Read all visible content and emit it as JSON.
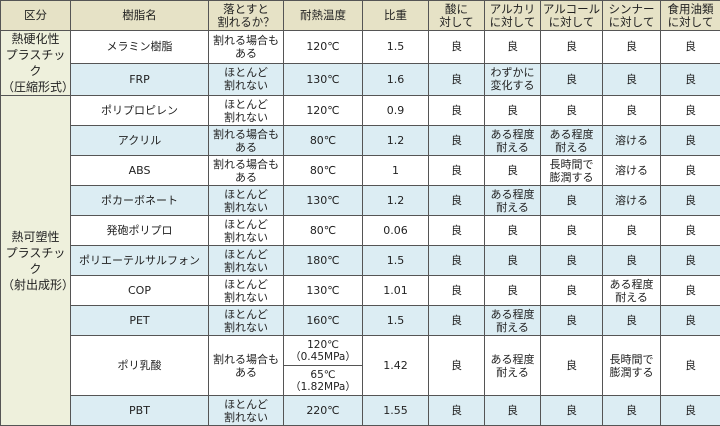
{
  "headers": [
    "区分",
    "樹脂名",
    "落とすと\n割れるか？",
    "耐熱温度",
    "比重",
    "酸に\n対して",
    "アルカリ\nに対して",
    "アルコール\nに対して",
    "シンナー\nに対して",
    "食用油類\nに対して"
  ],
  "categories": [
    {
      "label": "熱硬化性\nプラスチック\n（圧縮形式）",
      "rows": 2
    },
    {
      "label": "熱可塑性\nプラスチック\n（射出成形）",
      "rows": 10
    }
  ],
  "rows": [
    {
      "name": "メラミン樹脂",
      "drop": "割れる場合も\nある",
      "heat": "120℃",
      "sg": "1.5",
      "acid": "良",
      "alkali": "良",
      "alcohol": "良",
      "thinner": "良",
      "oil": "良"
    },
    {
      "name": "FRP",
      "drop": "ほとんど\n割れない",
      "heat": "130℃",
      "sg": "1.6",
      "acid": "良",
      "alkali": "わずかに\n変化する",
      "alcohol": "良",
      "thinner": "良",
      "oil": "良"
    },
    {
      "name": "ポリプロピレン",
      "drop": "ほとんど\n割れない",
      "heat": "120℃",
      "sg": "0.9",
      "acid": "良",
      "alkali": "良",
      "alcohol": "良",
      "thinner": "良",
      "oil": "良"
    },
    {
      "name": "アクリル",
      "drop": "割れる場合も\nある",
      "heat": "80℃",
      "sg": "1.2",
      "acid": "良",
      "alkali": "ある程度\n耐える",
      "alcohol": "ある程度\n耐える",
      "thinner": "溶ける",
      "oil": "良"
    },
    {
      "name": "ABS",
      "drop": "割れる場合も\nある",
      "heat": "80℃",
      "sg": "1",
      "acid": "良",
      "alkali": "良",
      "alcohol": "長時間で\n膨潤する",
      "thinner": "溶ける",
      "oil": "良"
    },
    {
      "name": "ポカーボネート",
      "drop": "ほとんど\n割れない",
      "heat": "130℃",
      "sg": "1.2",
      "acid": "良",
      "alkali": "ある程度\n耐える",
      "alcohol": "良",
      "thinner": "溶ける",
      "oil": "良"
    },
    {
      "name": "発砲ポリプロ",
      "drop": "ほとんど\n割れない",
      "heat": "80℃",
      "sg": "0.06",
      "acid": "良",
      "alkali": "良",
      "alcohol": "良",
      "thinner": "良",
      "oil": "良"
    },
    {
      "name": "ポリエーテルサルフォン",
      "drop": "ほとんど\n割れない",
      "heat": "180℃",
      "sg": "1.5",
      "acid": "良",
      "alkali": "良",
      "alcohol": "良",
      "thinner": "良",
      "oil": "良"
    },
    {
      "name": "COP",
      "drop": "ほとんど\n割れない",
      "heat": "130℃",
      "sg": "1.01",
      "acid": "良",
      "alkali": "良",
      "alcohol": "良",
      "thinner": "ある程度\n耐える",
      "oil": "良"
    },
    {
      "name": "PET",
      "drop": "ほとんど\n割れない",
      "heat": "160℃",
      "sg": "1.5",
      "acid": "良",
      "alkali": "ある程度\n耐える",
      "alcohol": "良",
      "thinner": "良",
      "oil": "良"
    },
    {
      "name": "ポリ乳酸",
      "drop": "割れる場合も\nある",
      "heat": "120℃\n（0.45MPa）",
      "heat2": "65℃\n（1.82MPa）",
      "sg": "1.42",
      "acid": "良",
      "alkali": "ある程度\n耐える",
      "alcohol": "良",
      "thinner": "長時間で\n膨潤する",
      "oil": "良"
    },
    {
      "name": "PBT",
      "drop": "ほとんど\n割れない",
      "heat": "220℃",
      "sg": "1.55",
      "acid": "良",
      "alkali": "良",
      "alcohol": "良",
      "thinner": "良",
      "oil": "良"
    }
  ],
  "colors": {
    "header": "#e6e2c6",
    "category": "#eef0dc",
    "alt_row": "#dcedf3",
    "border": "#555555"
  }
}
